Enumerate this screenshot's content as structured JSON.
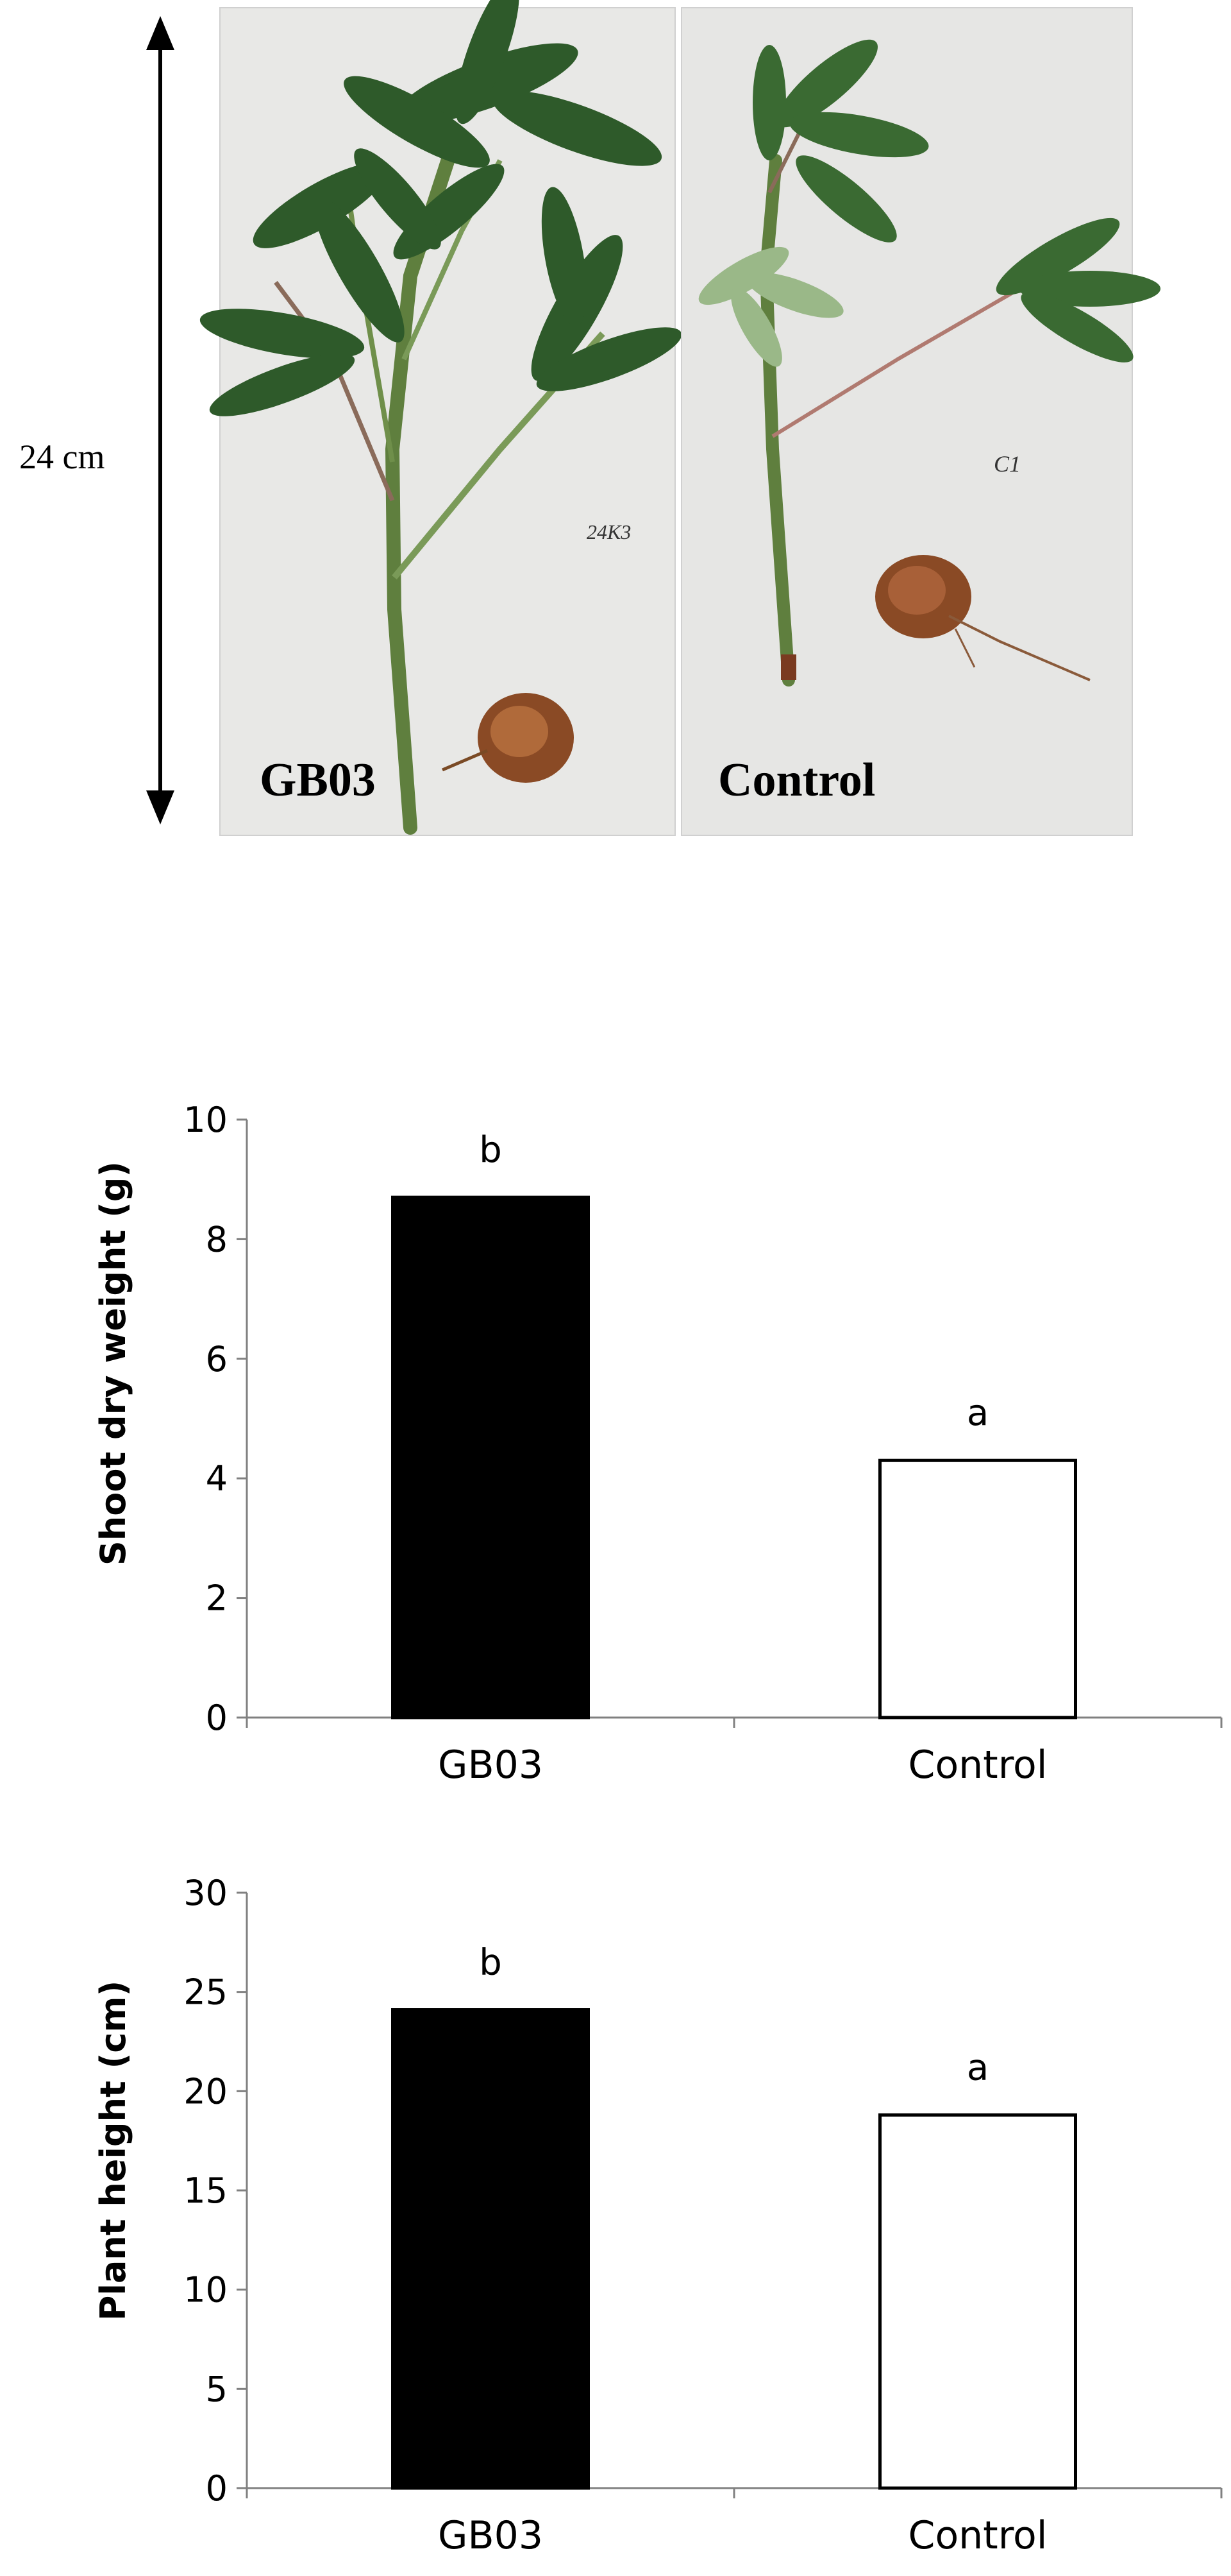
{
  "photo": {
    "scale_label": "24 cm",
    "left_panel_label": "GB03",
    "right_panel_label": "Control",
    "left_tag": "24K3",
    "right_tag": "C1",
    "colors": {
      "background": "#e9e9e7",
      "leaf": "#2f5a2a",
      "stem": "#6f8f4a",
      "tuber": "#8a4a25"
    }
  },
  "chart_data": [
    {
      "type": "bar",
      "categories": [
        "GB03",
        "Control"
      ],
      "values": [
        8.7,
        4.3
      ],
      "significance": [
        "b",
        "a"
      ],
      "ylabel": "Shoot dry  weight (g)",
      "ylim": [
        0,
        10
      ],
      "yticks": [
        "0",
        "2",
        "4",
        "6",
        "8",
        "10"
      ],
      "grid": false,
      "bar_colors": [
        "#000000",
        "#ffffff"
      ]
    },
    {
      "type": "bar",
      "categories": [
        "GB03",
        "Control"
      ],
      "values": [
        24.1,
        18.8
      ],
      "significance": [
        "b",
        "a"
      ],
      "ylabel": "Plant height (cm)",
      "ylim": [
        0,
        30
      ],
      "yticks": [
        "0",
        "5",
        "10",
        "15",
        "20",
        "25",
        "30"
      ],
      "grid": false,
      "bar_colors": [
        "#000000",
        "#ffffff"
      ]
    }
  ]
}
